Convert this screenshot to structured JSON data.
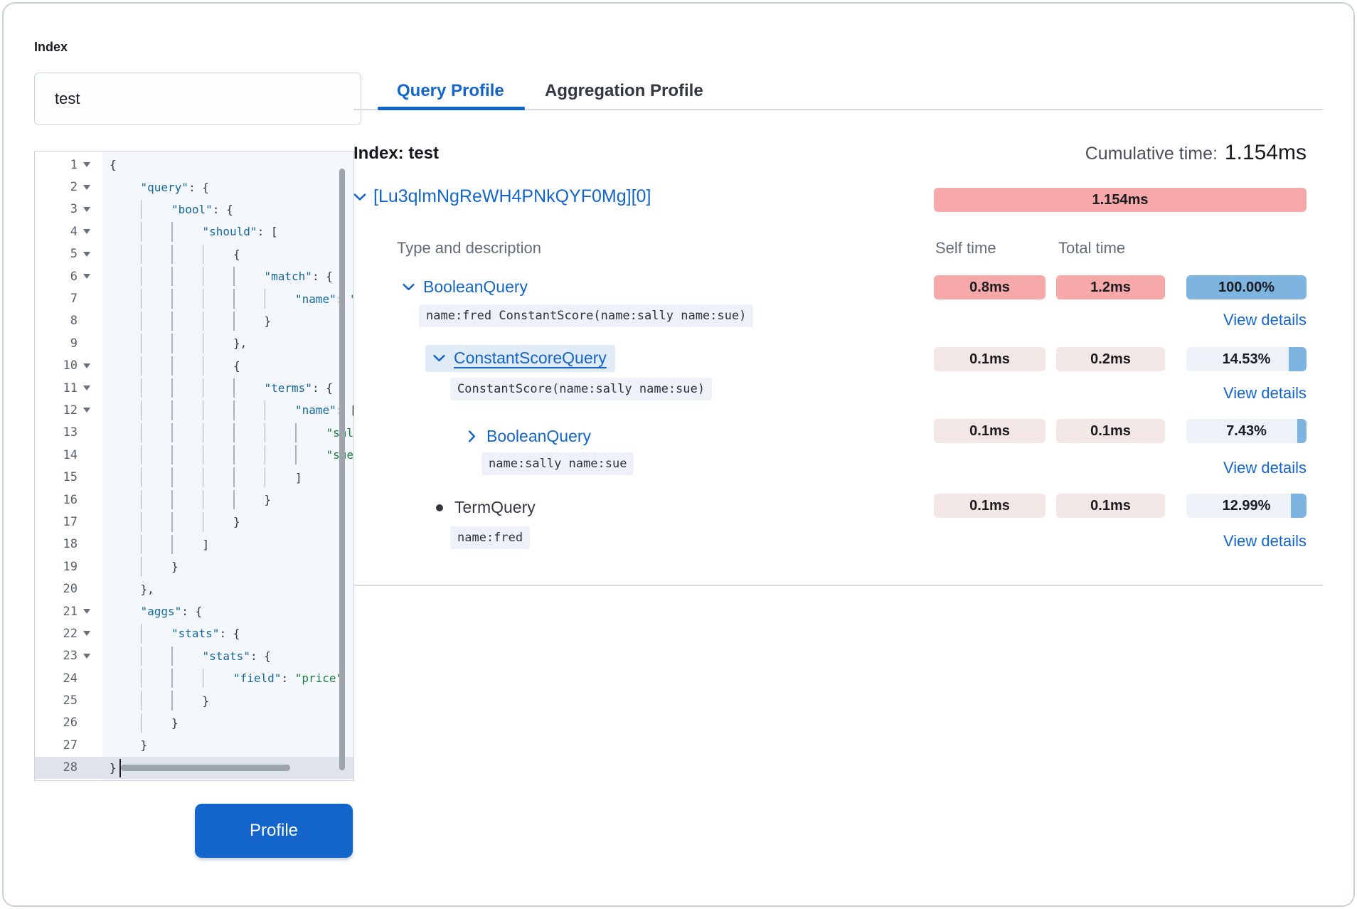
{
  "left": {
    "index_label": "Index",
    "index_value": "test",
    "profile_button": "Profile",
    "editor": {
      "lines": [
        {
          "n": 1,
          "fold": true,
          "indent": 0,
          "tokens": [
            [
              "p",
              "{"
            ]
          ]
        },
        {
          "n": 2,
          "fold": true,
          "indent": 1,
          "tokens": [
            [
              "k",
              "\"query\""
            ],
            [
              "p",
              ": {"
            ]
          ]
        },
        {
          "n": 3,
          "fold": true,
          "indent": 2,
          "tokens": [
            [
              "k",
              "\"bool\""
            ],
            [
              "p",
              ": {"
            ]
          ]
        },
        {
          "n": 4,
          "fold": true,
          "indent": 3,
          "tokens": [
            [
              "k",
              "\"should\""
            ],
            [
              "p",
              ": ["
            ]
          ]
        },
        {
          "n": 5,
          "fold": true,
          "indent": 4,
          "tokens": [
            [
              "p",
              "{"
            ]
          ]
        },
        {
          "n": 6,
          "fold": true,
          "indent": 5,
          "tokens": [
            [
              "k",
              "\"match\""
            ],
            [
              "p",
              ": {"
            ]
          ]
        },
        {
          "n": 7,
          "fold": false,
          "indent": 6,
          "tokens": [
            [
              "k",
              "\"name\""
            ],
            [
              "p",
              ": "
            ],
            [
              "s",
              "\"fred\""
            ]
          ]
        },
        {
          "n": 8,
          "fold": false,
          "indent": 5,
          "tokens": [
            [
              "p",
              "}"
            ]
          ]
        },
        {
          "n": 9,
          "fold": false,
          "indent": 4,
          "tokens": [
            [
              "p",
              "},"
            ]
          ]
        },
        {
          "n": 10,
          "fold": true,
          "indent": 4,
          "tokens": [
            [
              "p",
              "{"
            ]
          ]
        },
        {
          "n": 11,
          "fold": true,
          "indent": 5,
          "tokens": [
            [
              "k",
              "\"terms\""
            ],
            [
              "p",
              ": {"
            ]
          ]
        },
        {
          "n": 12,
          "fold": true,
          "indent": 6,
          "tokens": [
            [
              "k",
              "\"name\""
            ],
            [
              "p",
              ": ["
            ]
          ]
        },
        {
          "n": 13,
          "fold": false,
          "indent": 7,
          "tokens": [
            [
              "s",
              "\"sally\""
            ],
            [
              "p",
              ","
            ]
          ]
        },
        {
          "n": 14,
          "fold": false,
          "indent": 7,
          "tokens": [
            [
              "s",
              "\"sue\""
            ]
          ]
        },
        {
          "n": 15,
          "fold": false,
          "indent": 6,
          "tokens": [
            [
              "p",
              "]"
            ]
          ]
        },
        {
          "n": 16,
          "fold": false,
          "indent": 5,
          "tokens": [
            [
              "p",
              "}"
            ]
          ]
        },
        {
          "n": 17,
          "fold": false,
          "indent": 4,
          "tokens": [
            [
              "p",
              "}"
            ]
          ]
        },
        {
          "n": 18,
          "fold": false,
          "indent": 3,
          "tokens": [
            [
              "p",
              "]"
            ]
          ]
        },
        {
          "n": 19,
          "fold": false,
          "indent": 2,
          "tokens": [
            [
              "p",
              "}"
            ]
          ]
        },
        {
          "n": 20,
          "fold": false,
          "indent": 1,
          "tokens": [
            [
              "p",
              "},"
            ]
          ]
        },
        {
          "n": 21,
          "fold": true,
          "indent": 1,
          "tokens": [
            [
              "k",
              "\"aggs\""
            ],
            [
              "p",
              ": {"
            ]
          ]
        },
        {
          "n": 22,
          "fold": true,
          "indent": 2,
          "tokens": [
            [
              "k",
              "\"stats\""
            ],
            [
              "p",
              ": {"
            ]
          ]
        },
        {
          "n": 23,
          "fold": true,
          "indent": 3,
          "tokens": [
            [
              "k",
              "\"stats\""
            ],
            [
              "p",
              ": {"
            ]
          ]
        },
        {
          "n": 24,
          "fold": false,
          "indent": 4,
          "tokens": [
            [
              "k",
              "\"field\""
            ],
            [
              "p",
              ": "
            ],
            [
              "s",
              "\"price\""
            ]
          ]
        },
        {
          "n": 25,
          "fold": false,
          "indent": 3,
          "tokens": [
            [
              "p",
              "}"
            ]
          ]
        },
        {
          "n": 26,
          "fold": false,
          "indent": 2,
          "tokens": [
            [
              "p",
              "}"
            ]
          ]
        },
        {
          "n": 27,
          "fold": false,
          "indent": 1,
          "tokens": [
            [
              "p",
              "}"
            ]
          ]
        },
        {
          "n": 28,
          "fold": false,
          "indent": 0,
          "active": true,
          "cursor": true,
          "tokens": [
            [
              "p",
              "}"
            ]
          ]
        }
      ]
    }
  },
  "tabs": [
    {
      "label": "Query Profile",
      "active": true
    },
    {
      "label": "Aggregation Profile",
      "active": false
    }
  ],
  "main": {
    "index_heading": "Index: test",
    "cumulative_label": "Cumulative time:",
    "cumulative_value": "1.154ms",
    "shard": {
      "id": "[Lu3qlmNgReWH4PNkQYF0Mg][0]",
      "time": "1.154ms"
    },
    "columns": {
      "type": "Type and description",
      "self": "Self time",
      "total": "Total time"
    },
    "view_details_label": "View details",
    "rows": [
      {
        "name": "BooleanQuery",
        "icon": "chevron-down",
        "link": true,
        "highlighted": false,
        "desc": "name:fred ConstantScore(name:sally name:sue)",
        "self": "0.8ms",
        "self_hot": true,
        "total": "1.2ms",
        "total_hot": true,
        "pct": "100.00%",
        "pct_value": 100.0
      },
      {
        "name": "ConstantScoreQuery",
        "icon": "chevron-down",
        "link": true,
        "highlighted": true,
        "desc": "ConstantScore(name:sally name:sue)",
        "self": "0.1ms",
        "self_hot": false,
        "total": "0.2ms",
        "total_hot": false,
        "pct": "14.53%",
        "pct_value": 14.53
      },
      {
        "name": "BooleanQuery",
        "icon": "chevron-right",
        "link": true,
        "highlighted": false,
        "desc": "name:sally name:sue",
        "self": "0.1ms",
        "self_hot": false,
        "total": "0.1ms",
        "total_hot": false,
        "pct": "7.43%",
        "pct_value": 7.43
      },
      {
        "name": "TermQuery",
        "icon": "dot",
        "link": false,
        "highlighted": false,
        "desc": "name:fred",
        "self": "0.1ms",
        "self_hot": false,
        "total": "0.1ms",
        "total_hot": false,
        "pct": "12.99%",
        "pct_value": 12.99
      }
    ]
  },
  "colors": {
    "primary": "#1365CC",
    "hot_badge": "#F6A9A8",
    "cool_badge": "#F3E7E5",
    "percent_fill": "#7EB5E0"
  }
}
